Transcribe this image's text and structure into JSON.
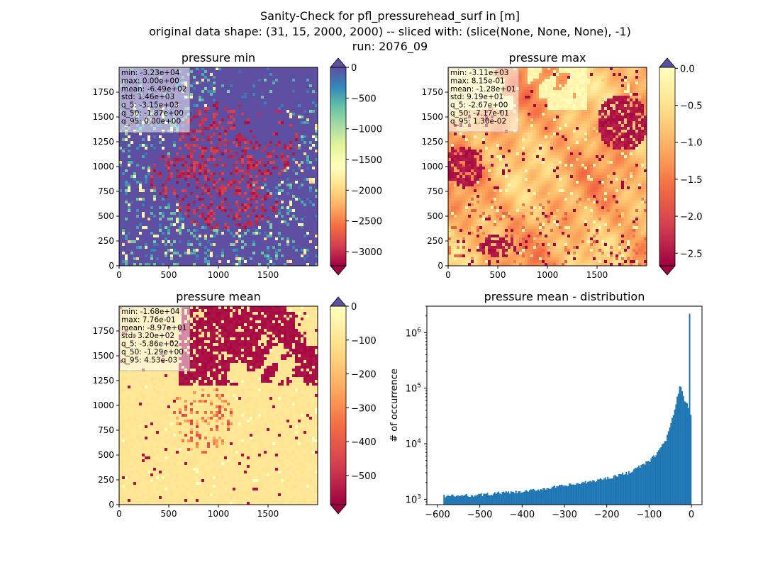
{
  "figure": {
    "suptitle_lines": [
      "Sanity-Check for pfl_pressurehead_surf in [m]",
      "original data shape: (31, 15, 2000, 2000) -- sliced with: (slice(None, None, None), -1)",
      "run: 2076_09"
    ]
  },
  "chart_data": [
    {
      "type": "heatmap",
      "title": "pressure min",
      "colormap": "Spectral",
      "xlim": [
        0,
        2000
      ],
      "ylim": [
        0,
        2000
      ],
      "x_ticks": [
        "0",
        "500",
        "1000",
        "1500"
      ],
      "y_ticks": [
        "0",
        "250",
        "500",
        "750",
        "1000",
        "1250",
        "1500",
        "1750"
      ],
      "colorbar": {
        "range": [
          -3230,
          0
        ],
        "ticks": [
          "0",
          "−500",
          "−1000",
          "−1500",
          "−2000",
          "−2500",
          "−3000"
        ],
        "extend": "both"
      },
      "stats": [
        "min: -3.23e+04",
        "max: 0.00e+00",
        "mean: -6.49e+02",
        "std: 1.46e+03",
        "q_5: -3.15e+03",
        "q_50: -1.87e+00",
        "q_95: 0.00e+00"
      ],
      "colors": {
        "low": "#9e0142",
        "high": "#5e4fa2"
      }
    },
    {
      "type": "heatmap",
      "title": "pressure max",
      "colormap": "Spectral",
      "xlim": [
        0,
        2000
      ],
      "ylim": [
        0,
        2000
      ],
      "x_ticks": [
        "0",
        "500",
        "1000",
        "1500"
      ],
      "y_ticks": [
        "0",
        "250",
        "500",
        "750",
        "1000",
        "1250",
        "1500",
        "1750"
      ],
      "colorbar": {
        "range": [
          -2.67,
          0.013
        ],
        "ticks": [
          "0.0",
          "−0.5",
          "−1.0",
          "−1.5",
          "−2.0",
          "−2.5"
        ],
        "extend": "both"
      },
      "stats": [
        "min: -3.11e+03",
        "max: 8.15e-01",
        "mean: -1.28e+01",
        "std: 9.19e+01",
        "q_5: -2.67e+00",
        "q_50: -7.17e-01",
        "q_95: 1.30e-02"
      ],
      "colors": {
        "low": "#9e0142",
        "high": "#ffffbf"
      }
    },
    {
      "type": "heatmap",
      "title": "pressure mean",
      "colormap": "Spectral",
      "xlim": [
        0,
        2000
      ],
      "ylim": [
        0,
        2000
      ],
      "x_ticks": [
        "0",
        "500",
        "1000",
        "1500"
      ],
      "y_ticks": [
        "0",
        "250",
        "500",
        "750",
        "1000",
        "1250",
        "1500",
        "1750"
      ],
      "colorbar": {
        "range": [
          -586,
          0.0045
        ],
        "ticks": [
          "0",
          "−100",
          "−200",
          "−300",
          "−400",
          "−500"
        ],
        "extend": "both"
      },
      "stats": [
        "min: -1.68e+04",
        "max: 7.76e-01",
        "mean: -8.97e+01",
        "std: 3.20e+02",
        "q_5: -5.86e+02",
        "q_50: -1.29e+00",
        "q_95: 4.53e-03"
      ],
      "colors": {
        "low": "#9e0142",
        "high": "#ffffbf"
      }
    },
    {
      "type": "bar",
      "subtype": "histogram",
      "title": "pressure mean - distribution",
      "ylabel": "# of occurrence",
      "xlabel": "",
      "yscale": "log",
      "xlim": [
        -625,
        25
      ],
      "ylim": [
        800,
        3000000
      ],
      "x_ticks": [
        "−600",
        "−500",
        "−400",
        "−300",
        "−200",
        "−100",
        "0"
      ],
      "x_tick_values": [
        -600,
        -500,
        -400,
        -300,
        -200,
        -100,
        0
      ],
      "y_tick_exponents": [
        3,
        4,
        5,
        6
      ],
      "color": "#1f77b4",
      "bins": {
        "start": -586,
        "end": 0,
        "count": 200
      },
      "profile_points": [
        [
          -586,
          1150
        ],
        [
          -550,
          1150
        ],
        [
          -500,
          1200
        ],
        [
          -450,
          1300
        ],
        [
          -400,
          1350
        ],
        [
          -350,
          1550
        ],
        [
          -300,
          1750
        ],
        [
          -250,
          2000
        ],
        [
          -200,
          2400
        ],
        [
          -150,
          3000
        ],
        [
          -100,
          4800
        ],
        [
          -80,
          7000
        ],
        [
          -60,
          12000
        ],
        [
          -50,
          20000
        ],
        [
          -40,
          40000
        ],
        [
          -35,
          60000
        ],
        [
          -30,
          90000
        ],
        [
          -27,
          120000
        ],
        [
          -24,
          100000
        ],
        [
          -20,
          70000
        ],
        [
          -15,
          60000
        ],
        [
          -10,
          55000
        ],
        [
          -6,
          40000
        ],
        [
          -3,
          33000
        ],
        [
          -1,
          2200000
        ],
        [
          0,
          90000
        ]
      ]
    }
  ]
}
